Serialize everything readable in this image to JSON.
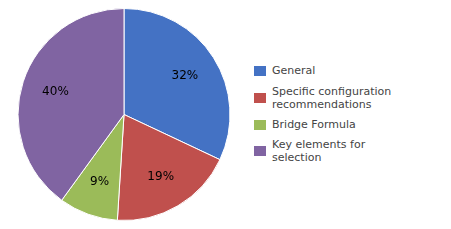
{
  "chart_data": {
    "type": "pie",
    "categories": [
      "General",
      "Specific configuration\nrecommendations",
      "Bridge Formula",
      "Key elements for\nselection"
    ],
    "values": [
      32,
      19,
      9,
      40
    ],
    "value_labels": [
      "32%",
      "19%",
      "9%",
      "40%"
    ],
    "colors": [
      "#4472C4",
      "#C0504D",
      "#9BBB59",
      "#8064A2"
    ],
    "data_labels": true,
    "legend": "right"
  }
}
